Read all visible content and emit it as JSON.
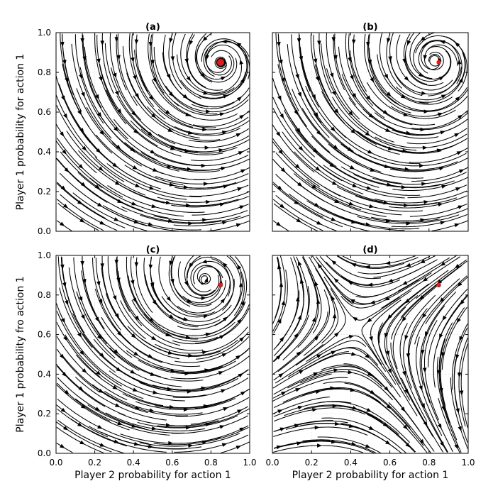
{
  "chart_data": [
    {
      "type": "streamplot",
      "title": "(a)",
      "xlabel": "",
      "ylabel": "Player 1 probability for action 1",
      "xlim": [
        0,
        1
      ],
      "ylim": [
        0,
        1
      ],
      "xticks": [
        "",
        "",
        "",
        "",
        "",
        ""
      ],
      "yticks": [
        "0.0",
        "0.2",
        "0.4",
        "0.6",
        "0.8",
        "1.0"
      ],
      "grid": true,
      "flow": "spiral",
      "center": [
        0.85,
        0.85
      ],
      "equilibrium": [
        0.85,
        0.85
      ],
      "equilibrium_color": "#e31a1c",
      "equilibrium_size": "large"
    },
    {
      "type": "streamplot",
      "title": "(b)",
      "xlabel": "",
      "ylabel": "",
      "xlim": [
        0,
        1
      ],
      "ylim": [
        0,
        1
      ],
      "xticks": [
        "",
        "",
        "",
        "",
        "",
        ""
      ],
      "yticks": [
        "",
        "",
        "",
        "",
        "",
        ""
      ],
      "grid": true,
      "flow": "spiral",
      "center": [
        0.83,
        0.86
      ],
      "equilibrium": [
        0.85,
        0.85
      ],
      "equilibrium_color": "#e31a1c",
      "equilibrium_size": "small"
    },
    {
      "type": "streamplot",
      "title": "(c)",
      "xlabel": "Player 2 probability for action 1",
      "ylabel": "Player 1 probability fro action 1",
      "xlim": [
        0,
        1
      ],
      "ylim": [
        0,
        1
      ],
      "xticks": [
        "0.0",
        "0.2",
        "0.4",
        "0.6",
        "0.8",
        "1.0"
      ],
      "yticks": [
        "0.0",
        "0.2",
        "0.4",
        "0.6",
        "0.8",
        "1.0"
      ],
      "grid": true,
      "flow": "spiral",
      "center": [
        0.77,
        0.88
      ],
      "equilibrium": [
        0.85,
        0.85
      ],
      "equilibrium_color": "#e31a1c",
      "equilibrium_size": "small"
    },
    {
      "type": "streamplot",
      "title": "(d)",
      "xlabel": "Player 2 probability for action 1",
      "ylabel": "",
      "xlim": [
        0,
        1
      ],
      "ylim": [
        0,
        1
      ],
      "xticks": [
        "0.0",
        "0.2",
        "0.4",
        "0.6",
        "0.8",
        "1.0"
      ],
      "yticks": [
        "",
        "",
        "",
        "",
        "",
        ""
      ],
      "grid": true,
      "flow": "saddle",
      "center": [
        0.43,
        0.64
      ],
      "equilibrium": [
        0.85,
        0.85
      ],
      "equilibrium_color": "#e31a1c",
      "equilibrium_size": "small"
    }
  ]
}
